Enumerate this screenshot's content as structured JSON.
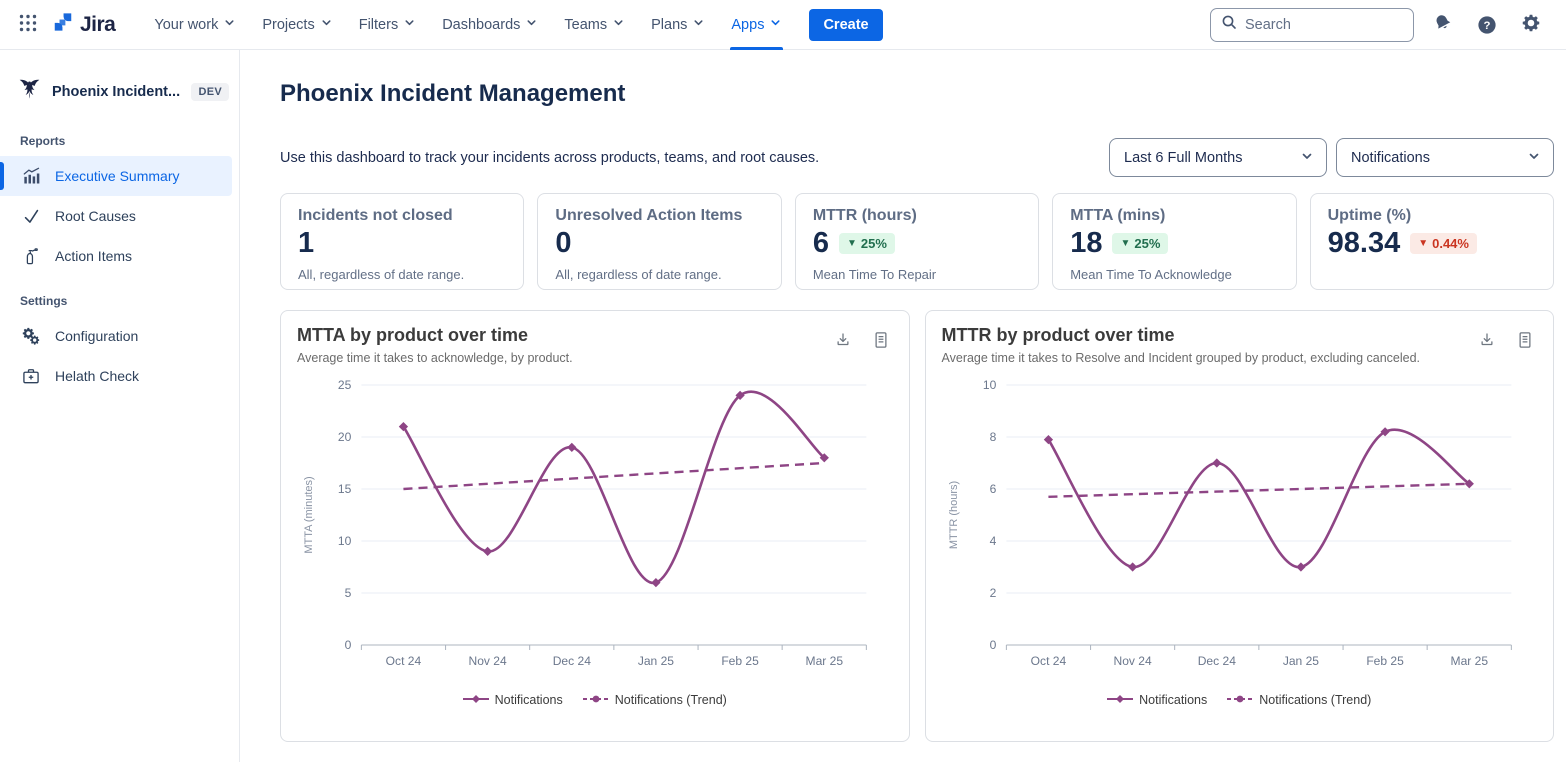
{
  "colors": {
    "brand_blue": "#0C66E4",
    "nav_text": "#44546F",
    "heading_navy": "#172B4D",
    "series_purple": "#8E4585",
    "success_bg": "#DFF7E8",
    "success_text": "#216E4E",
    "danger_bg": "#FBEAE5",
    "danger_text": "#CA3521",
    "selected_bg": "#E9F2FF",
    "card_border": "#DCDFE4",
    "grid_line": "#E9EDF5",
    "axis_text": "#6B778C"
  },
  "icons": {
    "down_triangle": "▼",
    "question_mark": "?"
  },
  "nav": {
    "brand": "Jira",
    "items": [
      {
        "label": "Your work"
      },
      {
        "label": "Projects"
      },
      {
        "label": "Filters"
      },
      {
        "label": "Dashboards"
      },
      {
        "label": "Teams"
      },
      {
        "label": "Plans"
      },
      {
        "label": "Apps"
      }
    ],
    "active_item": "Apps",
    "create_label": "Create",
    "search_placeholder": "Search"
  },
  "sidebar": {
    "app_name": "Phoenix Incident...",
    "app_badge": "DEV",
    "sections": [
      {
        "title": "Reports",
        "items": [
          {
            "label": "Executive Summary",
            "selected": true
          },
          {
            "label": "Root Causes",
            "selected": false
          },
          {
            "label": "Action Items",
            "selected": false
          }
        ]
      },
      {
        "title": "Settings",
        "items": [
          {
            "label": "Configuration",
            "selected": false
          },
          {
            "label": "Helath Check",
            "selected": false
          }
        ]
      }
    ]
  },
  "main": {
    "title": "Phoenix Incident Management",
    "description": "Use this dashboard to track your incidents across products, teams, and root causes.",
    "filters": {
      "date_range": "Last 6 Full Months",
      "product": "Notifications"
    },
    "kpis": [
      {
        "title": "Incidents not closed",
        "value": "1",
        "subtitle": "All, regardless of date range."
      },
      {
        "title": "Unresolved Action Items",
        "value": "0",
        "subtitle": "All, regardless of date range."
      },
      {
        "title": "MTTR (hours)",
        "value": "6",
        "delta": "25%",
        "delta_direction": "down",
        "delta_sentiment": "good",
        "subtitle": "Mean Time To Repair"
      },
      {
        "title": "MTTA (mins)",
        "value": "18",
        "delta": "25%",
        "delta_direction": "down",
        "delta_sentiment": "good",
        "subtitle": "Mean Time To Acknowledge"
      },
      {
        "title": "Uptime (%)",
        "value": "98.34",
        "delta": "0.44%",
        "delta_direction": "down",
        "delta_sentiment": "bad",
        "subtitle": ""
      }
    ]
  },
  "chart_data": [
    {
      "type": "line",
      "title": "MTTA by product over time",
      "subtitle": "Average time it takes to acknowledge, by product.",
      "categories": [
        "Oct 24",
        "Nov 24",
        "Dec 24",
        "Jan 25",
        "Feb 25",
        "Mar 25"
      ],
      "series": [
        {
          "name": "Notifications",
          "style": "solid",
          "marker": "diamond",
          "values": [
            21,
            9,
            19,
            6,
            24,
            18
          ]
        },
        {
          "name": "Notifications (Trend)",
          "style": "dashed",
          "marker": "circle",
          "values": [
            15,
            15.5,
            16,
            16.5,
            17,
            17.5
          ]
        }
      ],
      "ylabel": "MTTA (minutes)",
      "xlabel": "",
      "ylim": [
        0,
        25
      ],
      "ytick_step": 5,
      "color": "#8E4585",
      "grid": true,
      "legend_position": "bottom"
    },
    {
      "type": "line",
      "title": "MTTR by product over time",
      "subtitle": "Average time it takes to Resolve and Incident grouped by product, excluding canceled.",
      "categories": [
        "Oct 24",
        "Nov 24",
        "Dec 24",
        "Jan 25",
        "Feb 25",
        "Mar 25"
      ],
      "series": [
        {
          "name": "Notifications",
          "style": "solid",
          "marker": "diamond",
          "values": [
            7.9,
            3,
            7,
            3,
            8.2,
            6.2
          ]
        },
        {
          "name": "Notifications (Trend)",
          "style": "dashed",
          "marker": "circle",
          "values": [
            5.7,
            5.8,
            5.9,
            6.0,
            6.1,
            6.2
          ]
        }
      ],
      "ylabel": "MTTR (hours)",
      "xlabel": "",
      "ylim": [
        0,
        10
      ],
      "ytick_step": 2,
      "color": "#8E4585",
      "grid": true,
      "legend_position": "bottom"
    }
  ]
}
